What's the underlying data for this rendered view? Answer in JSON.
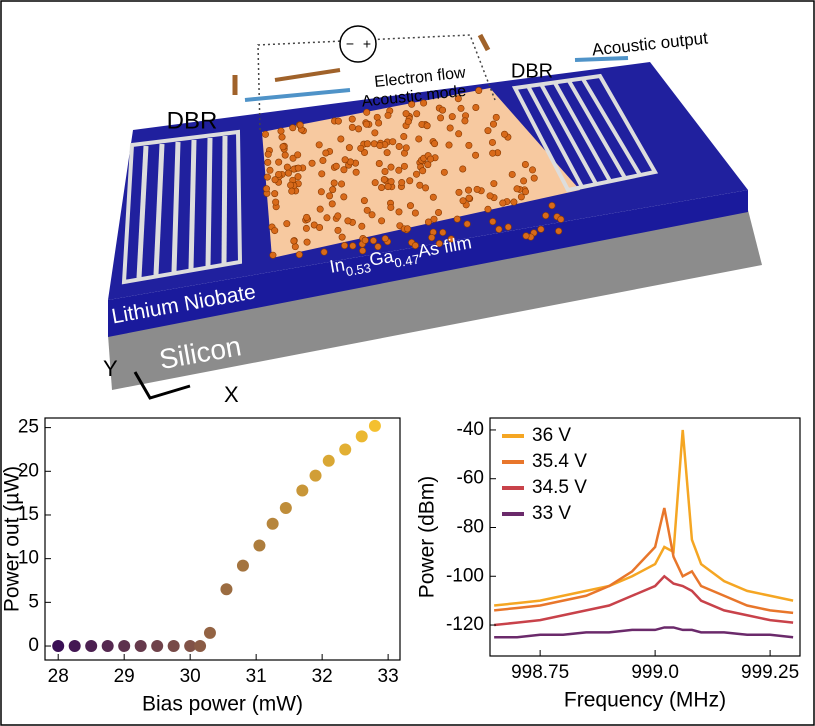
{
  "illustration": {
    "labels": {
      "dbr_left": "DBR",
      "dbr_right": "DBR",
      "electron_flow": "Electron flow",
      "acoustic_mode": "Acoustic mode",
      "acoustic_output": "Acoustic output",
      "film_in": "In",
      "film_in_sub": "0.53",
      "film_ga": "Ga",
      "film_ga_sub": "0.47",
      "film_as": "As film",
      "substrate": "Lithium Niobate",
      "base": "Silicon",
      "axis_y": "Y",
      "axis_x": "X"
    }
  },
  "chart_data": [
    {
      "type": "scatter",
      "x_label": "Bias power (mW)",
      "y_label": "Power out (µW)",
      "x": [
        28.0,
        28.25,
        28.5,
        28.75,
        29.0,
        29.25,
        29.5,
        29.75,
        30.0,
        30.15,
        30.3,
        30.55,
        30.8,
        31.05,
        31.25,
        31.45,
        31.7,
        31.9,
        32.1,
        32.35,
        32.6,
        32.8
      ],
      "values": [
        0,
        0,
        0,
        0,
        0,
        0,
        0,
        0,
        0,
        0,
        1.5,
        6.5,
        9.2,
        11.5,
        14,
        15.8,
        17.8,
        19.5,
        21.2,
        22.5,
        24,
        25.2
      ],
      "color_range": [
        "#3a0f55",
        "#f4c02f"
      ],
      "xlim": [
        27.8,
        33.18
      ],
      "xticks": [
        28,
        29,
        30,
        31,
        32,
        33
      ],
      "ylim": [
        -1.6,
        26.1
      ],
      "yticks": [
        0,
        5,
        10,
        15,
        20,
        25
      ]
    },
    {
      "type": "line",
      "x_label": "Frequency (MHz)",
      "y_label": "Power (dBm)",
      "legend": "upper left",
      "x": [
        998.65,
        998.7,
        998.75,
        998.8,
        998.85,
        998.9,
        998.95,
        999.0,
        999.02,
        999.04,
        999.06,
        999.08,
        999.1,
        999.15,
        999.2,
        999.25,
        999.3
      ],
      "series": [
        {
          "name": "36 V",
          "color": "#f5a623",
          "values": [
            -112,
            -111,
            -110,
            -108,
            -106,
            -104,
            -100,
            -95,
            -88,
            -90,
            -40,
            -85,
            -95,
            -102,
            -106,
            -108,
            -110
          ]
        },
        {
          "name": "35.4 V",
          "color": "#e8762b",
          "values": [
            -114,
            -113,
            -112,
            -110,
            -108,
            -104,
            -98,
            -88,
            -72,
            -92,
            -100,
            -98,
            -104,
            -108,
            -112,
            -114,
            -115
          ]
        },
        {
          "name": "34.5 V",
          "color": "#c8424a",
          "values": [
            -120,
            -119,
            -118,
            -116,
            -114,
            -112,
            -108,
            -104,
            -100,
            -103,
            -104,
            -106,
            -110,
            -114,
            -116,
            -118,
            -119
          ]
        },
        {
          "name": "33 V",
          "color": "#6b2a6b",
          "values": [
            -125,
            -125,
            -124,
            -124,
            -123,
            -123,
            -122,
            -122,
            -121,
            -121,
            -122,
            -122,
            -123,
            -123,
            -124,
            -124,
            -125
          ]
        }
      ],
      "xlim": [
        998.641,
        999.315
      ],
      "xticks": [
        998.75,
        {
          "value": 999,
          "label": "999.0"
        },
        999.25
      ],
      "ylim": [
        -132.7,
        -35.1
      ],
      "yticks": [
        -40,
        -60,
        -80,
        -100,
        -120
      ]
    }
  ]
}
